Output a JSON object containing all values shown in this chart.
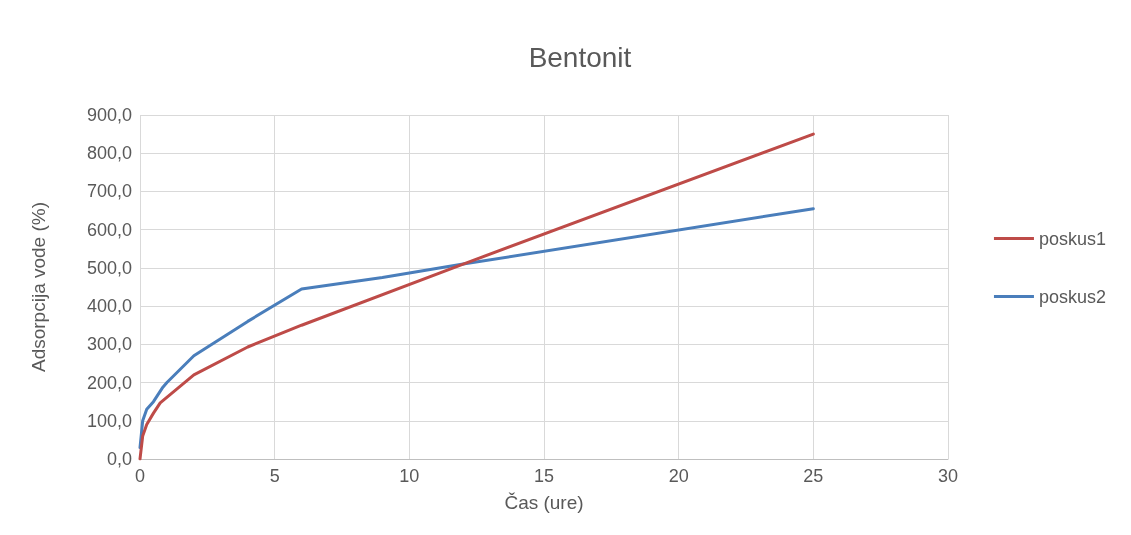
{
  "chart_data": {
    "type": "line",
    "title": "Bentonit",
    "xlabel": "Čas (ure)",
    "ylabel": "Adsorpcija vode (%)",
    "xlim": [
      0,
      30
    ],
    "xticks": [
      0,
      5,
      10,
      15,
      20,
      25,
      30
    ],
    "ylim": [
      0,
      900
    ],
    "yticks": [
      {
        "value": 0,
        "label": "0,0"
      },
      {
        "value": 100,
        "label": "100,0"
      },
      {
        "value": 200,
        "label": "200,0"
      },
      {
        "value": 300,
        "label": "300,0"
      },
      {
        "value": 400,
        "label": "400,0"
      },
      {
        "value": 500,
        "label": "500,0"
      },
      {
        "value": 600,
        "label": "600,0"
      },
      {
        "value": 700,
        "label": "700,0"
      },
      {
        "value": 800,
        "label": "800,0"
      },
      {
        "value": 900,
        "label": "900,0"
      }
    ],
    "grid": true,
    "legend": "right",
    "marker": "none",
    "line_style": "solid",
    "series": [
      {
        "name": "poskus2",
        "color": "#4a7ebb",
        "x": [
          0,
          0.1,
          0.25,
          0.5,
          0.85,
          1,
          2,
          4,
          6,
          9,
          12,
          25
        ],
        "values": [
          30,
          100,
          130,
          150,
          188,
          200,
          270,
          360,
          445,
          475,
          510,
          655
        ]
      },
      {
        "name": "poskus1",
        "color": "#be4b48",
        "x": [
          0,
          0.1,
          0.25,
          0.5,
          0.75,
          2,
          4,
          6,
          12,
          25
        ],
        "values": [
          0,
          60,
          90,
          120,
          147,
          220,
          293,
          350,
          510,
          850
        ]
      }
    ]
  }
}
